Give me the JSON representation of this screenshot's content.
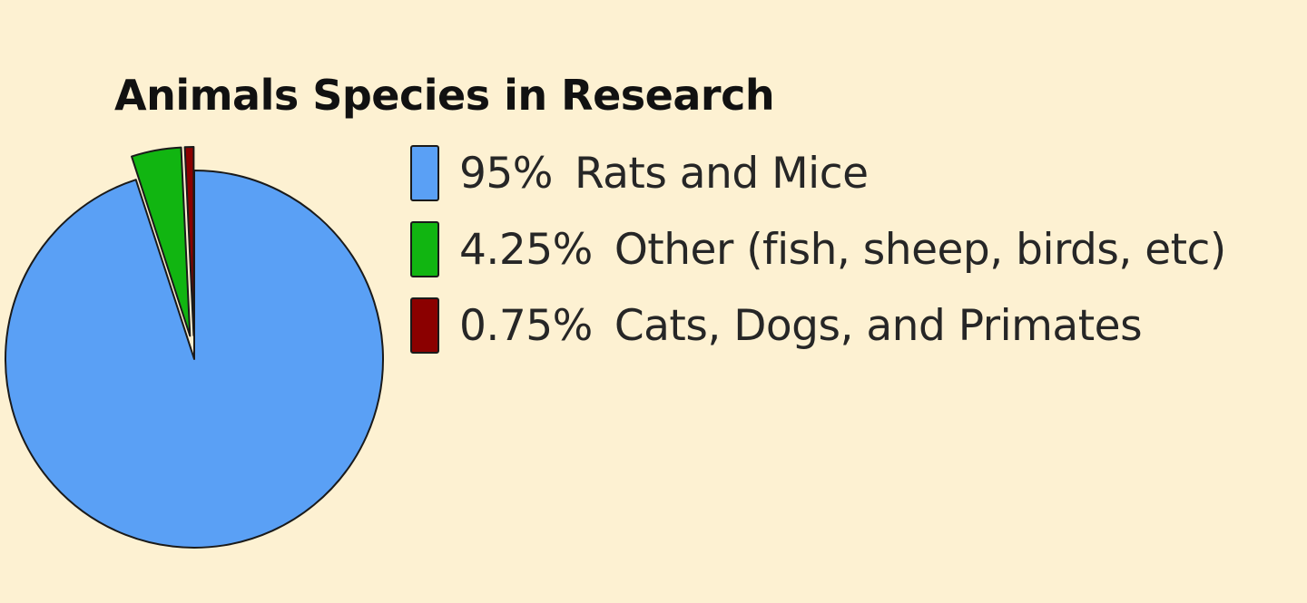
{
  "chart_data": {
    "type": "pie",
    "title": "Animals Species in Research",
    "slices": [
      {
        "label": "Rats and Mice",
        "display_value": "95%",
        "value": 95,
        "color": "#5aa0f5",
        "exploded": false
      },
      {
        "label": "Other (fish, sheep, birds, etc)",
        "display_value": "4.25%",
        "value": 4.25,
        "color": "#11b511",
        "exploded": true
      },
      {
        "label": "Cats, Dogs, and Primates",
        "display_value": "0.75%",
        "value": 0.75,
        "color": "#8b0000",
        "exploded": true
      }
    ],
    "start_angle": "12 o'clock",
    "direction": "clockwise",
    "legend": "right"
  }
}
